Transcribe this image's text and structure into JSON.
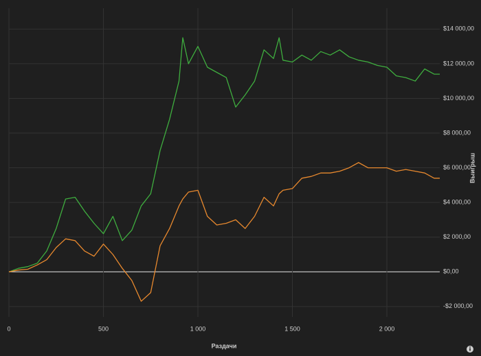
{
  "chart_data": {
    "type": "line",
    "x_label": "Раздачи",
    "y_label": "Выигрыш",
    "x": [
      0,
      50,
      100,
      150,
      200,
      250,
      300,
      350,
      400,
      450,
      500,
      550,
      600,
      650,
      700,
      750,
      800,
      850,
      900,
      920,
      950,
      1000,
      1050,
      1100,
      1150,
      1200,
      1250,
      1300,
      1350,
      1400,
      1430,
      1450,
      1500,
      1550,
      1600,
      1650,
      1700,
      1750,
      1800,
      1850,
      1900,
      1950,
      2000,
      2050,
      2100,
      2150,
      2200,
      2250,
      2280
    ],
    "series": [
      {
        "color": "#3fae3f",
        "values": [
          0,
          200,
          300,
          500,
          1200,
          2500,
          4200,
          4300,
          3500,
          2800,
          2200,
          3200,
          1800,
          2400,
          3800,
          4500,
          7000,
          8800,
          11000,
          13500,
          12000,
          13000,
          11800,
          11500,
          11200,
          9500,
          10200,
          11000,
          12800,
          12300,
          13500,
          12200,
          12100,
          12500,
          12200,
          12700,
          12500,
          12800,
          12400,
          12200,
          12100,
          11900,
          11800,
          11300,
          11200,
          11000,
          11700,
          11400,
          11400
        ]
      },
      {
        "color": "#e8892e",
        "values": [
          0,
          100,
          150,
          400,
          700,
          1400,
          1900,
          1800,
          1200,
          900,
          1600,
          1000,
          200,
          -500,
          -1700,
          -1200,
          1500,
          2500,
          3800,
          4200,
          4600,
          4700,
          3200,
          2700,
          2800,
          3000,
          2500,
          3200,
          4300,
          3800,
          4500,
          4700,
          4800,
          5400,
          5500,
          5700,
          5700,
          5800,
          6000,
          6300,
          6000,
          6000,
          6000,
          5800,
          5900,
          5800,
          5700,
          5400,
          5400
        ]
      }
    ],
    "xlim": [
      0,
      2280
    ],
    "ylim": [
      -2600,
      15200
    ],
    "xticks": [
      0,
      500,
      {
        "value": 1000,
        "label": "1 000"
      },
      {
        "value": 1500,
        "label": "1 500"
      },
      {
        "value": 2000,
        "label": "2 000"
      }
    ],
    "yticks": [
      {
        "value": -2000,
        "label": "-$2 000,00"
      },
      {
        "value": 0,
        "label": "$0,00"
      },
      {
        "value": 2000,
        "label": "$2 000,00"
      },
      {
        "value": 4000,
        "label": "$4 000,00"
      },
      {
        "value": 6000,
        "label": "$6 000,00"
      },
      {
        "value": 8000,
        "label": "$8 000,00"
      },
      {
        "value": 10000,
        "label": "$10 000,00"
      },
      {
        "value": 12000,
        "label": "$12 000,00"
      },
      {
        "value": 14000,
        "label": "$14 000,00"
      }
    ],
    "grid": true
  }
}
